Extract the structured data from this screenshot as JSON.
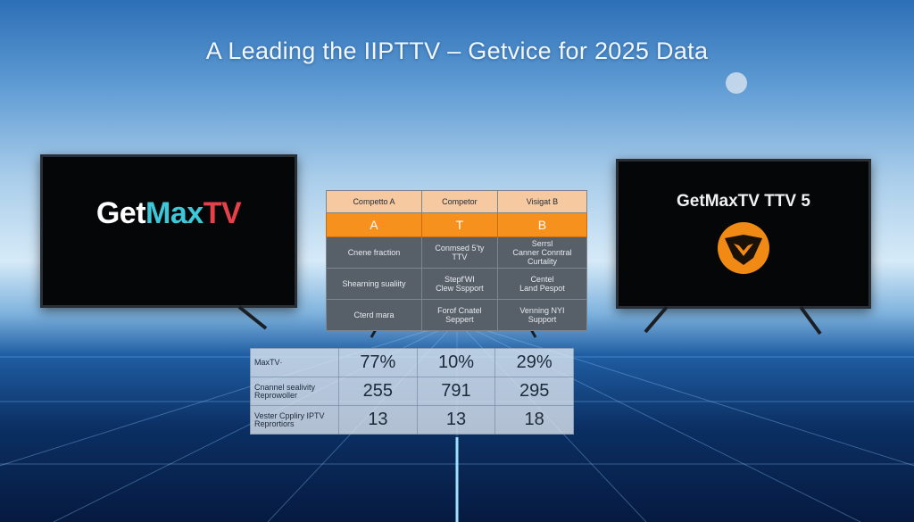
{
  "title": "A Leading the IIPTTV – Getvice for 2025 Data",
  "left_tv": {
    "brand": [
      "Get",
      "Max",
      "TV"
    ]
  },
  "right_tv": {
    "brand": "GetMaxTV TTV 5"
  },
  "top_table": {
    "header": [
      "Competto A",
      "Competor",
      "Visigat B"
    ],
    "letters": [
      "A",
      "T",
      "B"
    ],
    "rows": [
      [
        [
          "Cnene fraction"
        ],
        [
          "Conmsed 5’ty",
          "TTV"
        ],
        [
          "Serrsl",
          "Canner Conntral",
          "Curtality"
        ]
      ],
      [
        [
          "Shearning sualiity"
        ],
        [
          "Stepf'WI",
          "Clew Sspport"
        ],
        [
          "Centel",
          "Land Pespot"
        ]
      ],
      [
        [
          "Cterd mara"
        ],
        [
          "Forof Cnatel",
          "Seppert"
        ],
        [
          "Venning NYI",
          "Support"
        ]
      ]
    ]
  },
  "bottom_table": {
    "rows": [
      [
        [
          "MaxTV·"
        ],
        "77%",
        "10%",
        "29%"
      ],
      [
        [
          "Cnannel sealivity",
          "Reprowoller"
        ],
        "255",
        "791",
        "295"
      ],
      [
        [
          "Vester Cppliry IPTV",
          "Reprortiors"
        ],
        "13",
        "13",
        "18"
      ]
    ]
  }
}
